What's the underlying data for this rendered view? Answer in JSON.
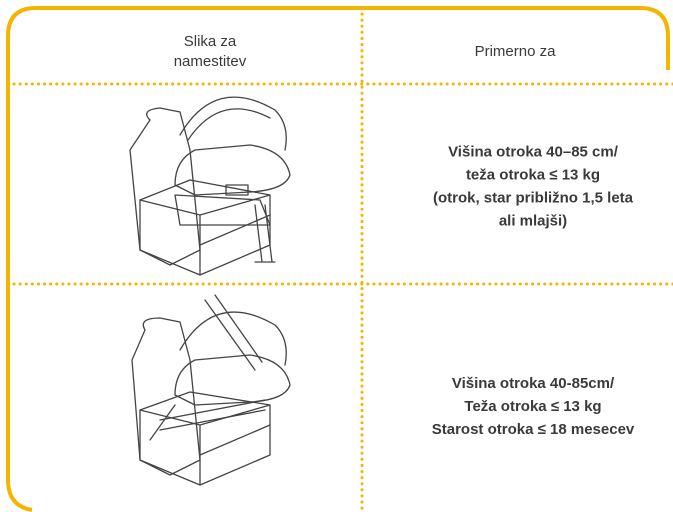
{
  "table": {
    "header": [
      [
        "Slika za",
        "namestitev"
      ],
      [
        "Primerno za"
      ]
    ],
    "rows": [
      {
        "suitable": [
          "Višina otroka 40–85 cm/",
          "teža otroka ≤ 13 kg",
          "(otrok, star približno 1,5 leta",
          "ali mlajši)"
        ]
      },
      {
        "suitable": [
          "Višina otroka 40-85cm/",
          "Teža otroka ≤ 13 kg",
          "Starost otroka ≤ 18 mesecev"
        ]
      }
    ]
  }
}
